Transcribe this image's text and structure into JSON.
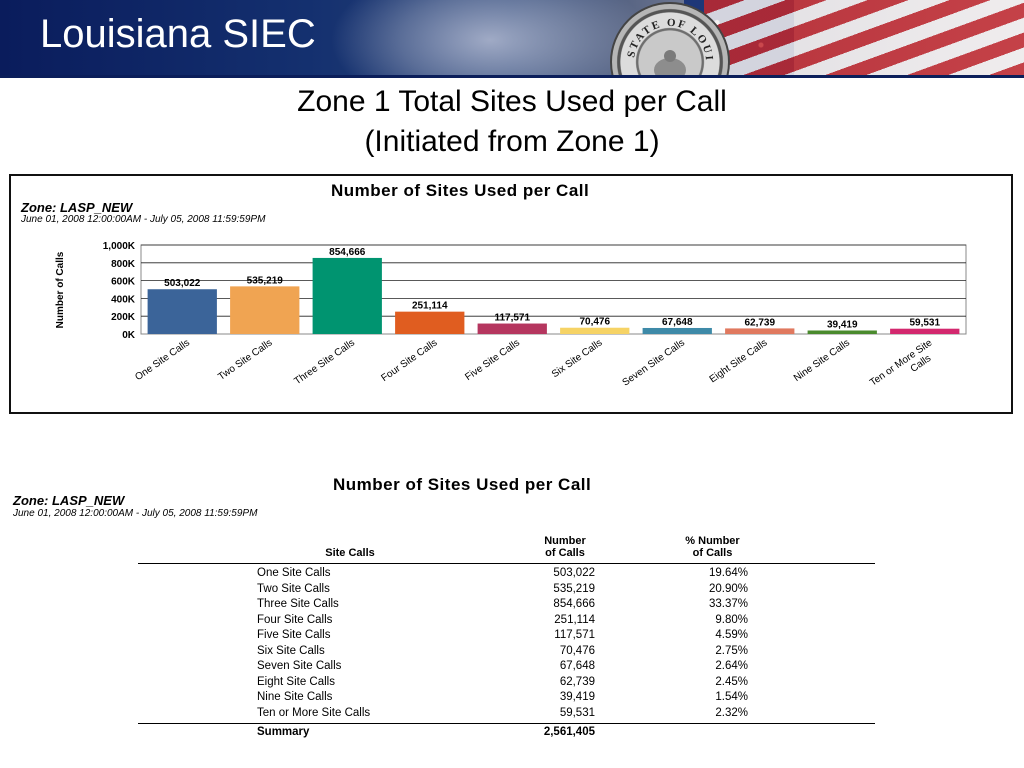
{
  "header": {
    "title": "Louisiana SIEC",
    "seal_text": "STATE OF LOUISIANA"
  },
  "slide": {
    "title_line1": "Zone 1 Total Sites Used per Call",
    "title_line2": "(Initiated from Zone 1)"
  },
  "colors": {
    "banner": "#14306f",
    "bar_colors": [
      "#3b6499",
      "#f0a452",
      "#009470",
      "#e05d20",
      "#b5365f",
      "#f6d365",
      "#3e8aa8",
      "#e0795f",
      "#4a8a2d",
      "#d3286e"
    ]
  },
  "report": {
    "title": "Number of Sites Used per Call",
    "zone": "Zone: LASP_NEW",
    "date_range": "June 01, 2008 12:00:00AM - July 05, 2008 11:59:59PM"
  },
  "chart_data": {
    "type": "bar",
    "title": "Number of Sites Used per Call",
    "ylabel": "Number of Calls",
    "xlabel": "",
    "ylim": [
      0,
      1000000
    ],
    "yticks": [
      0,
      200000,
      400000,
      600000,
      800000,
      1000000
    ],
    "ytick_labels": [
      "0K",
      "200K",
      "400K",
      "600K",
      "800K",
      "1,000K"
    ],
    "categories": [
      "One Site Calls",
      "Two Site Calls",
      "Three Site Calls",
      "Four Site Calls",
      "Five Site Calls",
      "Six Site Calls",
      "Seven Site Calls",
      "Eight Site Calls",
      "Nine Site Calls",
      "Ten or More Site Calls"
    ],
    "category_label_lines": [
      [
        "One Site Calls"
      ],
      [
        "Two Site Calls"
      ],
      [
        "Three Site Calls"
      ],
      [
        "Four Site Calls"
      ],
      [
        "Five Site Calls"
      ],
      [
        "Six Site Calls"
      ],
      [
        "Seven Site Calls"
      ],
      [
        "Eight Site Calls"
      ],
      [
        "Nine Site Calls"
      ],
      [
        "Ten or More Site",
        "Calls"
      ]
    ],
    "values": [
      503022,
      535219,
      854666,
      251114,
      117571,
      70476,
      67648,
      62739,
      39419,
      59531
    ],
    "value_labels": [
      "503,022",
      "535,219",
      "854,666",
      "251,114",
      "117,571",
      "70,476",
      "67,648",
      "62,739",
      "39,419",
      "59,531"
    ],
    "grid": true,
    "legend": "none"
  },
  "table": {
    "title": "Number of Sites Used per Call",
    "zone": "Zone: LASP_NEW",
    "date_range": "June 01, 2008 12:00:00AM - July 05, 2008 11:59:59PM",
    "col_site": "Site Calls",
    "col_num_1": "Number",
    "col_num_2": "of Calls",
    "col_pct_1": "% Number",
    "col_pct_2": "of Calls",
    "rows": [
      {
        "label": "One Site Calls",
        "num": "503,022",
        "pct": "19.64%"
      },
      {
        "label": "Two Site Calls",
        "num": "535,219",
        "pct": "20.90%"
      },
      {
        "label": "Three Site Calls",
        "num": "854,666",
        "pct": "33.37%"
      },
      {
        "label": "Four Site Calls",
        "num": "251,114",
        "pct": "9.80%"
      },
      {
        "label": "Five Site Calls",
        "num": "117,571",
        "pct": "4.59%"
      },
      {
        "label": "Six Site Calls",
        "num": "70,476",
        "pct": "2.75%"
      },
      {
        "label": "Seven Site Calls",
        "num": "67,648",
        "pct": "2.64%"
      },
      {
        "label": "Eight Site Calls",
        "num": "62,739",
        "pct": "2.45%"
      },
      {
        "label": "Nine Site Calls",
        "num": "39,419",
        "pct": "1.54%"
      },
      {
        "label": "Ten or More Site Calls",
        "num": "59,531",
        "pct": "2.32%"
      }
    ],
    "summary_label": "Summary",
    "summary_total": "2,561,405"
  }
}
